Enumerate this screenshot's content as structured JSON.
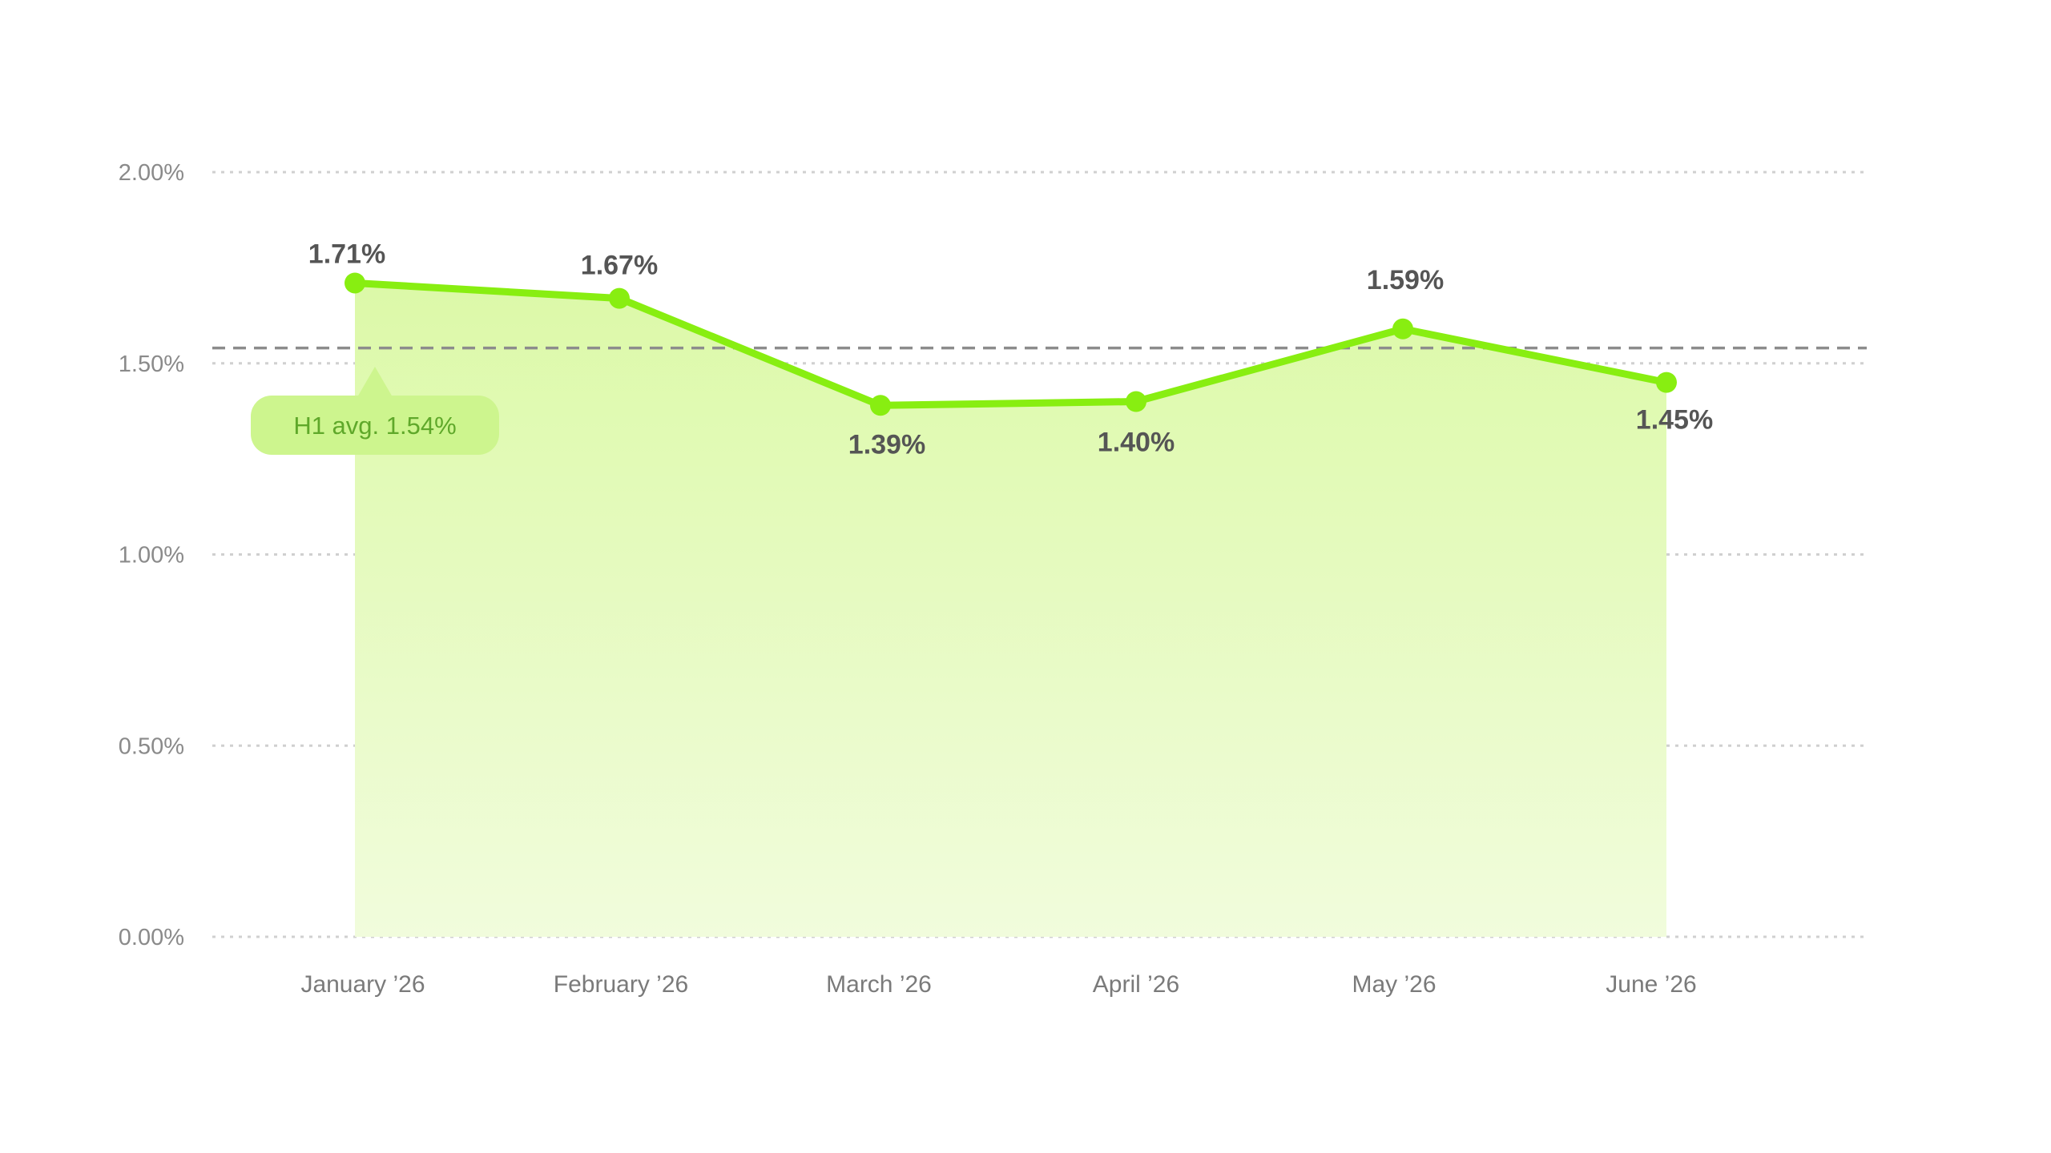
{
  "chart_data": {
    "type": "area",
    "categories": [
      "January ’26",
      "February ’26",
      "March ’26",
      "April ’26",
      "May ’26",
      "June ’26"
    ],
    "values": [
      1.71,
      1.67,
      1.39,
      1.4,
      1.59,
      1.45
    ],
    "value_labels": [
      "1.71%",
      "1.67%",
      "1.39%",
      "1.40%",
      "1.59%",
      "1.45%"
    ],
    "y_ticks": [
      0,
      0.5,
      1.0,
      1.5,
      2.0
    ],
    "y_tick_labels": [
      "0.00%",
      "0.50%",
      "1.00%",
      "1.50%",
      "2.00%"
    ],
    "ylim": [
      0,
      2.0
    ],
    "average": {
      "value": 1.54,
      "label": "H1 avg. 1.54%"
    },
    "grid": true,
    "colors": {
      "line": "#88ee11",
      "area_top": "#dcf9a8",
      "area_bottom": "#f1fcdc",
      "avg_line": "#8c8c8c",
      "avg_badge": "#cdf58e",
      "grid": "#d0d0d0"
    }
  }
}
